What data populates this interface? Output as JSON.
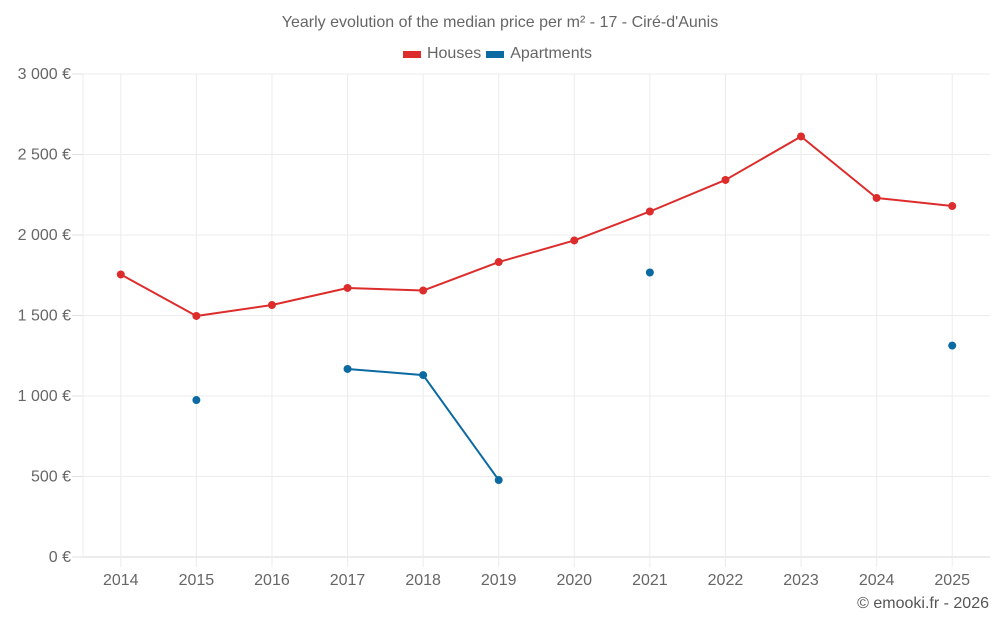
{
  "chart_data": {
    "type": "line",
    "title": "Yearly evolution of the median price per m² - 17 - Ciré-d'Aunis",
    "xlabel": "",
    "ylabel": "",
    "categories": [
      "2014",
      "2015",
      "2016",
      "2017",
      "2018",
      "2019",
      "2020",
      "2021",
      "2022",
      "2023",
      "2024",
      "2025"
    ],
    "ylim": [
      0,
      3000
    ],
    "y_ticks": [
      0,
      500,
      1000,
      1500,
      2000,
      2500,
      3000
    ],
    "y_tick_labels": [
      "0 €",
      "500 €",
      "1 000 €",
      "1 500 €",
      "2 000 €",
      "2 500 €",
      "3 000 €"
    ],
    "grid": true,
    "legend_position": "top-center",
    "series": [
      {
        "name": "Houses",
        "color": "#dd2c2c",
        "values": [
          1755,
          1497,
          1565,
          1671,
          1655,
          1832,
          1966,
          2146,
          2342,
          2612,
          2230,
          2180
        ]
      },
      {
        "name": "Apartments",
        "color": "#0a6aa1",
        "values": [
          null,
          975,
          null,
          1168,
          1130,
          478,
          null,
          1767,
          null,
          null,
          null,
          1313
        ]
      }
    ]
  },
  "legend": [
    {
      "label": "Houses",
      "color": "#dd2c2c"
    },
    {
      "label": "Apartments",
      "color": "#0a6aa1"
    }
  ],
  "credit": "© emooki.fr - 2026"
}
